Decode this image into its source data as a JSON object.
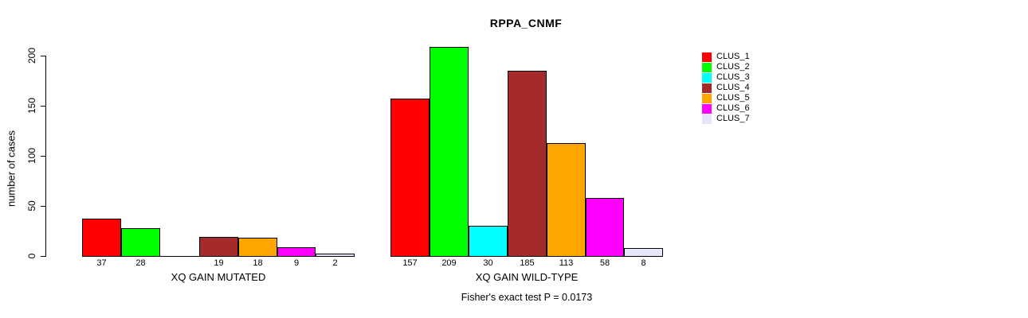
{
  "chart_data": {
    "type": "bar",
    "title": "RPPA_CNMF",
    "ylabel": "number of cases",
    "xlabel": "",
    "ylim": [
      0,
      200
    ],
    "yticks": [
      0,
      50,
      100,
      150,
      200
    ],
    "grid": false,
    "legend_position": "top-right",
    "clusters": [
      {
        "name": "CLUS_1",
        "color": "#FF0000"
      },
      {
        "name": "CLUS_2",
        "color": "#00FF00"
      },
      {
        "name": "CLUS_3",
        "color": "#00FFFF"
      },
      {
        "name": "CLUS_4",
        "color": "#A52A2A"
      },
      {
        "name": "CLUS_5",
        "color": "#FFA500"
      },
      {
        "name": "CLUS_6",
        "color": "#FF00FF"
      },
      {
        "name": "CLUS_7",
        "color": "#E6E6FA"
      }
    ],
    "groups": [
      {
        "label": "XQ GAIN MUTATED",
        "values": [
          37,
          28,
          0,
          19,
          18,
          9,
          2
        ],
        "bar_labels": [
          "37",
          "28",
          "",
          "19",
          "18",
          "9",
          "2"
        ]
      },
      {
        "label": "XQ GAIN WILD-TYPE",
        "values": [
          157,
          209,
          30,
          185,
          113,
          58,
          8
        ],
        "bar_labels": [
          "157",
          "209",
          "30",
          "185",
          "113",
          "58",
          "8"
        ]
      }
    ],
    "annotation": "Fisher's exact test P = 0.0173"
  }
}
